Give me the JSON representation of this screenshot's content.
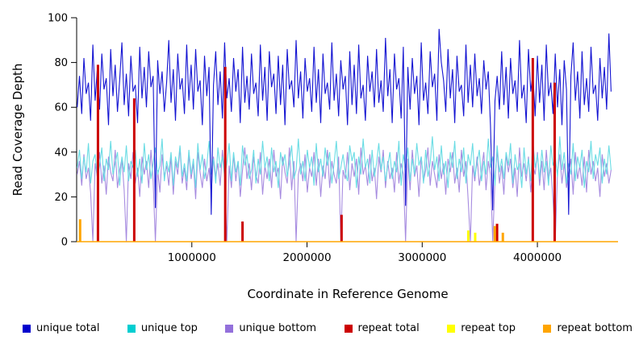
{
  "figure": {
    "xlabel": "Coordinate in Reference Genome",
    "ylabel": "Read Coverage Depth"
  },
  "chart_data": {
    "type": "line",
    "title": "",
    "xlabel": "Coordinate in Reference Genome",
    "ylabel": "Read Coverage Depth",
    "xlim": [
      0,
      4700000
    ],
    "ylim": [
      0,
      100
    ],
    "grid": false,
    "legend_position": "bottom",
    "x_ticks": [
      1000000,
      2000000,
      3000000,
      4000000
    ],
    "x_tick_labels": [
      "1000000",
      "2000000",
      "3000000",
      "4000000"
    ],
    "y_ticks": [
      0,
      20,
      40,
      60,
      80,
      100
    ],
    "y_tick_labels": [
      "0",
      "20",
      "40",
      "60",
      "80",
      "100"
    ],
    "sample_x_range": {
      "start": 5000,
      "end": 4640000
    },
    "series": [
      {
        "name": "unique total",
        "legend_color": "#0000CD",
        "line_color": "#1414D2",
        "values": [
          60,
          74,
          57,
          82,
          66,
          71,
          54,
          88,
          63,
          77,
          59,
          84,
          68,
          73,
          52,
          86,
          65,
          79,
          58,
          72,
          89,
          61,
          75,
          56,
          83,
          67,
          70,
          53,
          87,
          64,
          78,
          60,
          85,
          69,
          74,
          15,
          81,
          66,
          76,
          58,
          71,
          90,
          62,
          77,
          54,
          84,
          68,
          73,
          57,
          88,
          63,
          79,
          59,
          86,
          67,
          72,
          52,
          83,
          65,
          78,
          12,
          70,
          85,
          61,
          76,
          55,
          89,
          64,
          73,
          58,
          82,
          67,
          77,
          53,
          87,
          62,
          74,
          59,
          84,
          66,
          71,
          56,
          88,
          63,
          78,
          54,
          85,
          69,
          75,
          57,
          83,
          61,
          79,
          52,
          86,
          68,
          72,
          60,
          90,
          64,
          76,
          55,
          82,
          67,
          73,
          58,
          87,
          62,
          77,
          53,
          84,
          66,
          71,
          59,
          89,
          63,
          75,
          56,
          81,
          68,
          74,
          52,
          85,
          61,
          79,
          57,
          88,
          64,
          70,
          54,
          83,
          67,
          76,
          60,
          86,
          62,
          72,
          58,
          91,
          65,
          77,
          53,
          84,
          68,
          73,
          55,
          87,
          16,
          78,
          59,
          82,
          66,
          74,
          52,
          89,
          63,
          71,
          57,
          85,
          69,
          75,
          54,
          95,
          80,
          72,
          58,
          86,
          64,
          77,
          53,
          83,
          67,
          70,
          56,
          88,
          62,
          79,
          60,
          84,
          65,
          73,
          57,
          81,
          68,
          76,
          52,
          14,
          63,
          74,
          59,
          85,
          61,
          78,
          55,
          82,
          66,
          72,
          58,
          90,
          64,
          70,
          53,
          86,
          67,
          75,
          56,
          83,
          62,
          79,
          54,
          88,
          65,
          71,
          57,
          84,
          60,
          77,
          52,
          81,
          68,
          12,
          74,
          89,
          63,
          76,
          55,
          85,
          61,
          73,
          58,
          87,
          66,
          70,
          54,
          82,
          64,
          78,
          59,
          93,
          67
        ]
      },
      {
        "name": "unique top",
        "legend_color": "#00CED1",
        "line_color": "#6ADCE4",
        "values": [
          33,
          41,
          28,
          38,
          31,
          44,
          26,
          36,
          39,
          29,
          34,
          42,
          27,
          37,
          32,
          45,
          30,
          35,
          40,
          25,
          38,
          31,
          43,
          27,
          36,
          33,
          41,
          29,
          37,
          26,
          44,
          32,
          39,
          28,
          35,
          42,
          30,
          34,
          46,
          27,
          36,
          31,
          40,
          25,
          38,
          33,
          43,
          29,
          35,
          27,
          41,
          30,
          37,
          24,
          44,
          32,
          39,
          28,
          34,
          45,
          30,
          37,
          26,
          42,
          33,
          38,
          29,
          35,
          44,
          27,
          40,
          31,
          36,
          25,
          43,
          34,
          39,
          28,
          32,
          41,
          26,
          37,
          30,
          45,
          33,
          38,
          27,
          42,
          31,
          36,
          24,
          40,
          34,
          39,
          29,
          35,
          43,
          28,
          32,
          46,
          30,
          36,
          27,
          41,
          33,
          38,
          25,
          44,
          31,
          37,
          29,
          42,
          34,
          40,
          26,
          35,
          45,
          28,
          33,
          39,
          31,
          27,
          43,
          36,
          40,
          24,
          38,
          30,
          46,
          33,
          37,
          26,
          41,
          29,
          35,
          44,
          32,
          38,
          27,
          34,
          40,
          28,
          36,
          31,
          45,
          25,
          39,
          33,
          42,
          27,
          37,
          30,
          44,
          34,
          38,
          26,
          41,
          29,
          35,
          47,
          32,
          38,
          27,
          43,
          30,
          36,
          24,
          40,
          33,
          45,
          28,
          37,
          31,
          42,
          26,
          39,
          34,
          44,
          29,
          35,
          41,
          27,
          36,
          30,
          46,
          33,
          38,
          25,
          43,
          31,
          37,
          28,
          40,
          34,
          44,
          26,
          39,
          32,
          35,
          24,
          42,
          30,
          37,
          27,
          45,
          33,
          39,
          28,
          41,
          31,
          36,
          25,
          43,
          34,
          38,
          29,
          47,
          32,
          40,
          26,
          35,
          30,
          44,
          27,
          38,
          33,
          41,
          24,
          36,
          31,
          45,
          28,
          39,
          34,
          42,
          26,
          37,
          30,
          43,
          32
        ]
      },
      {
        "name": "unique bottom",
        "legend_color": "#9370DB",
        "line_color": "#A78CE0",
        "values": [
          30,
          36,
          25,
          39,
          28,
          33,
          22,
          0,
          35,
          29,
          40,
          26,
          34,
          21,
          38,
          31,
          27,
          41,
          24,
          32,
          37,
          23,
          0,
          35,
          28,
          40,
          26,
          33,
          20,
          38,
          30,
          36,
          24,
          41,
          27,
          0,
          32,
          22,
          39,
          29,
          34,
          25,
          38,
          21,
          36,
          30,
          42,
          26,
          33,
          23,
          39,
          28,
          35,
          19,
          40,
          31,
          24,
          37,
          27,
          33,
          22,
          38,
          29,
          35,
          25,
          41,
          30,
          0,
          34,
          24,
          39,
          27,
          36,
          20,
          32,
          42,
          28,
          35,
          23,
          38,
          30,
          26,
          40,
          21,
          34,
          28,
          37,
          24,
          41,
          29,
          33,
          19,
          38,
          31,
          26,
          42,
          23,
          36,
          0,
          30,
          35,
          27,
          39,
          22,
          33,
          29,
          40,
          25,
          37,
          20,
          34,
          28,
          41,
          24,
          36,
          30,
          26,
          38,
          0,
          32,
          28,
          40,
          23,
          35,
          29,
          37,
          21,
          42,
          30,
          34,
          25,
          39,
          27,
          33,
          19,
          38,
          31,
          41,
          24,
          36,
          28,
          33,
          22,
          40,
          26,
          35,
          30,
          0,
          37,
          23,
          41,
          29,
          34,
          20,
          38,
          27,
          32,
          42,
          25,
          36,
          30,
          24,
          39,
          28,
          35,
          21,
          37,
          31,
          40,
          26,
          33,
          22,
          41,
          29,
          36,
          19,
          0,
          34,
          27,
          38,
          25,
          32,
          40,
          23,
          36,
          30,
          0,
          28,
          41,
          26,
          34,
          21,
          39,
          31,
          37,
          24,
          33,
          20,
          42,
          29,
          35,
          27,
          38,
          22,
          34,
          30,
          40,
          25,
          36,
          23,
          41,
          28,
          33,
          19,
          0,
          31,
          39,
          26,
          35,
          24,
          30,
          37,
          21,
          40,
          28,
          34,
          25,
          38,
          22,
          41,
          30,
          36,
          27,
          33,
          20,
          39,
          29,
          35,
          26,
          32
        ]
      }
    ],
    "spike_series": [
      {
        "name": "repeat total",
        "legend_color": "#CC0000",
        "line_color": "#CC0000",
        "baseline": null,
        "spikes": [
          {
            "x": 185000,
            "y": 79
          },
          {
            "x": 500000,
            "y": 64
          },
          {
            "x": 1290000,
            "y": 78
          },
          {
            "x": 1440000,
            "y": 9
          },
          {
            "x": 2300000,
            "y": 12
          },
          {
            "x": 3650000,
            "y": 8
          },
          {
            "x": 3960000,
            "y": 82
          },
          {
            "x": 4150000,
            "y": 71
          }
        ]
      },
      {
        "name": "repeat top",
        "legend_color": "#FFFF00",
        "line_color": "#FFFF00",
        "baseline": null,
        "spikes": [
          {
            "x": 3400000,
            "y": 5
          },
          {
            "x": 3460000,
            "y": 4
          }
        ]
      },
      {
        "name": "repeat bottom",
        "legend_color": "#FFA500",
        "line_color": "#FFA500",
        "baseline": 0,
        "spikes": [
          {
            "x": 30000,
            "y": 10
          },
          {
            "x": 3630000,
            "y": 7
          },
          {
            "x": 3700000,
            "y": 4
          }
        ]
      }
    ],
    "legend": [
      {
        "label": "unique total",
        "color": "#0000CD"
      },
      {
        "label": "unique top",
        "color": "#00CED1"
      },
      {
        "label": "unique bottom",
        "color": "#9370DB"
      },
      {
        "label": "repeat total",
        "color": "#CC0000"
      },
      {
        "label": "repeat top",
        "color": "#FFFF00"
      },
      {
        "label": "repeat bottom",
        "color": "#FFA500"
      }
    ]
  }
}
